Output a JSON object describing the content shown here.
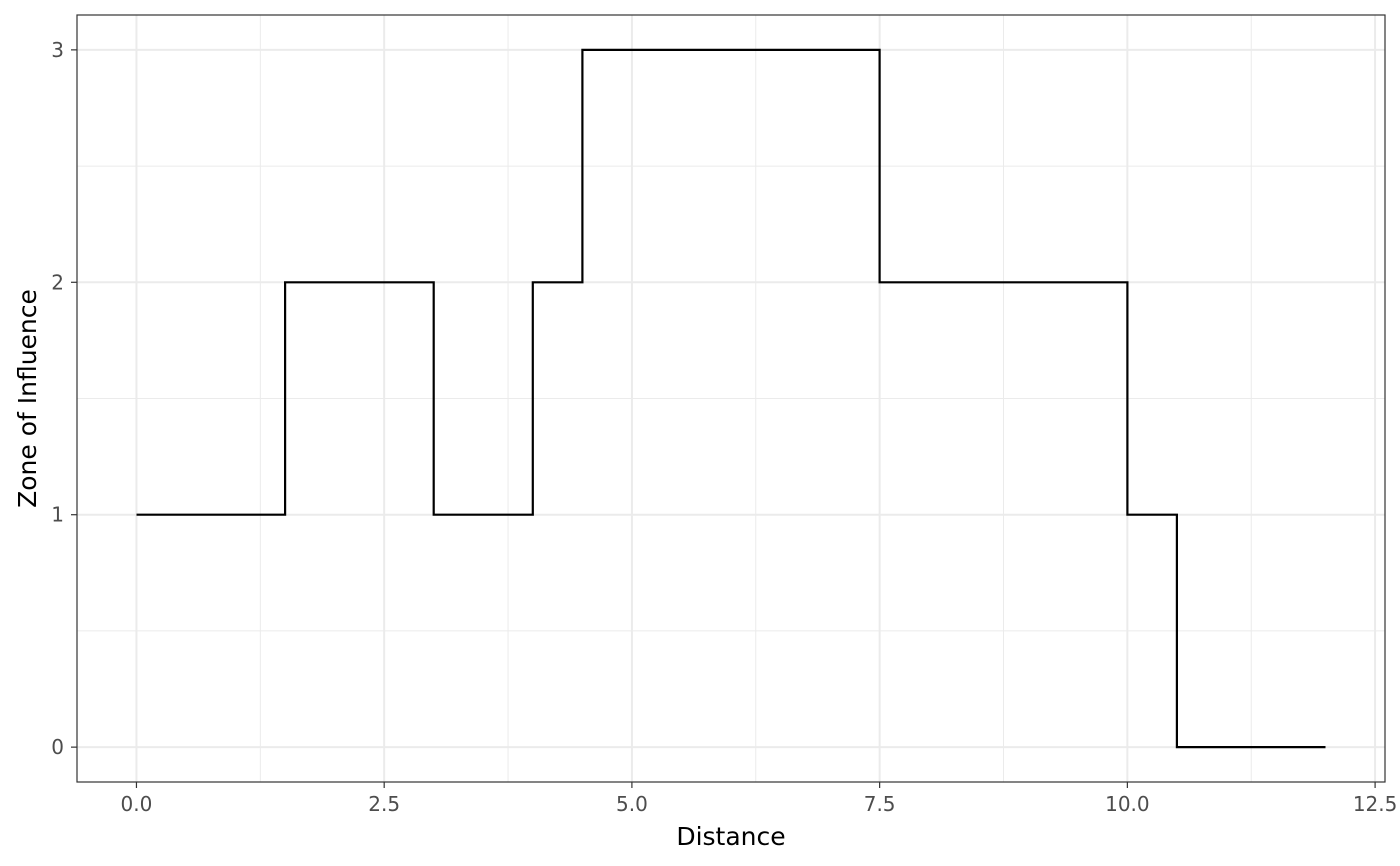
{
  "chart_data": {
    "type": "line",
    "line_style": "step",
    "xlabel": "Distance",
    "ylabel": "Zone of Influence",
    "xlim": [
      -0.6,
      12.6
    ],
    "ylim": [
      -0.15,
      3.15
    ],
    "x_ticks": [
      0.0,
      2.5,
      5.0,
      7.5,
      10.0,
      12.5
    ],
    "x_tick_labels": [
      "0.0",
      "2.5",
      "5.0",
      "7.5",
      "10.0",
      "12.5"
    ],
    "x_minor_ticks": [
      1.25,
      3.75,
      6.25,
      8.75,
      11.25
    ],
    "y_ticks": [
      0,
      1,
      2,
      3
    ],
    "y_tick_labels": [
      "0",
      "1",
      "2",
      "3"
    ],
    "y_minor_ticks": [
      0.5,
      1.5,
      2.5
    ],
    "grid": true,
    "series": [
      {
        "color": "#000000",
        "x": [
          0.0,
          1.5,
          1.5,
          3.0,
          3.0,
          4.0,
          4.0,
          4.5,
          4.5,
          7.5,
          7.5,
          10.0,
          10.0,
          10.5,
          10.5,
          12.0
        ],
        "y": [
          1,
          1,
          2,
          2,
          1,
          1,
          2,
          2,
          3,
          3,
          2,
          2,
          1,
          1,
          0,
          0
        ]
      }
    ]
  }
}
